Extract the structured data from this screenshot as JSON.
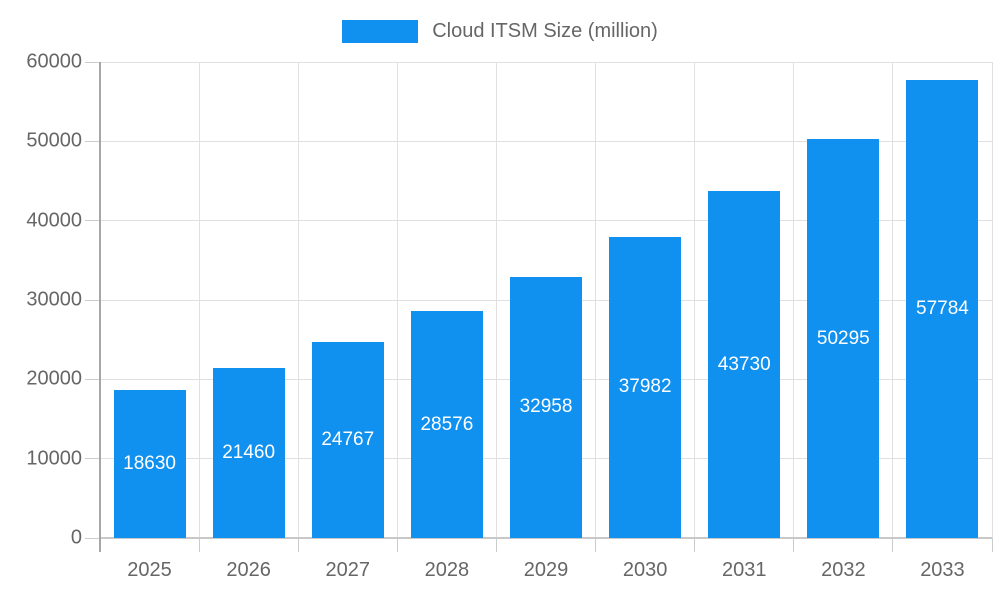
{
  "chart_data": {
    "type": "bar",
    "title": "Cloud ITSM Size (million)",
    "categories": [
      "2025",
      "2026",
      "2027",
      "2028",
      "2029",
      "2030",
      "2031",
      "2032",
      "2033"
    ],
    "values": [
      18630,
      21460,
      24767,
      28576,
      32958,
      37982,
      43730,
      50295,
      57784
    ],
    "xlabel": "",
    "ylabel": "",
    "ylim": [
      0,
      60000
    ],
    "ytick_step": 10000,
    "grid": true,
    "legend_position": "top-center",
    "bar_value_labels": "inside-center",
    "colors": {
      "bar": "#1191EF",
      "bar_label": "#ffffff",
      "grid": "#e0e0e0",
      "tick": "#cccccc",
      "axis_y": "#a6a6a6",
      "axis_x": "#c8c8c8",
      "text": "#666666",
      "background": "#ffffff"
    }
  },
  "legend": {
    "label": "Cloud ITSM Size (million)"
  }
}
